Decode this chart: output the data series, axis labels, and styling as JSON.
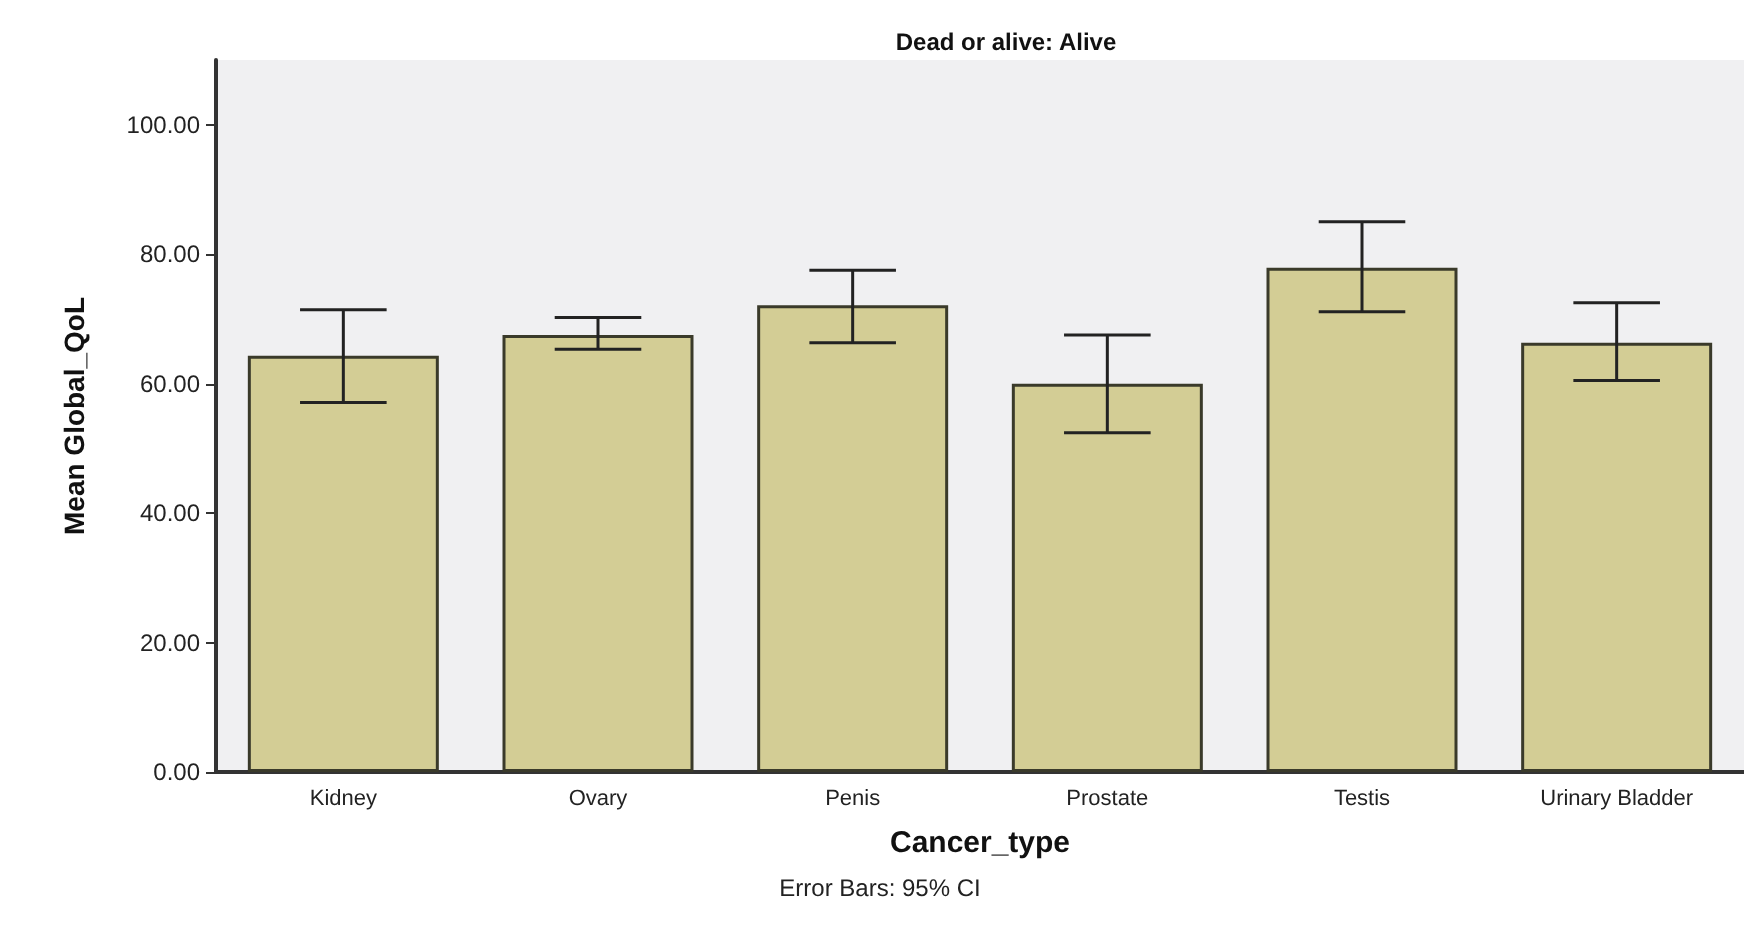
{
  "chart_data": {
    "type": "bar",
    "title": "Dead or alive: Alive",
    "xlabel": "Cancer_type",
    "ylabel": "Mean Global_QoL",
    "categories": [
      "Kidney",
      "Ovary",
      "Penis",
      "Prostate",
      "Testis",
      "Urinary Bladder"
    ],
    "values": [
      64.3,
      67.5,
      72.1,
      60.0,
      77.9,
      66.3
    ],
    "errors": [
      [
        57.1,
        71.4
      ],
      [
        65.3,
        70.2
      ],
      [
        66.3,
        77.5
      ],
      [
        52.4,
        67.5
      ],
      [
        71.1,
        85.0
      ],
      [
        60.5,
        72.5
      ]
    ],
    "color": "#d3cd95",
    "ylim": [
      0,
      110
    ],
    "yticks": [
      {
        "value": 0,
        "label": "0.00"
      },
      {
        "value": 20,
        "label": "20.00"
      },
      {
        "value": 40,
        "label": "40.00"
      },
      {
        "value": 60,
        "label": "60.00"
      },
      {
        "value": 80,
        "label": "80.00"
      },
      {
        "value": 100,
        "label": "100.00"
      }
    ],
    "grid": false,
    "annotations": [
      "Error Bars: 95% CI"
    ]
  }
}
